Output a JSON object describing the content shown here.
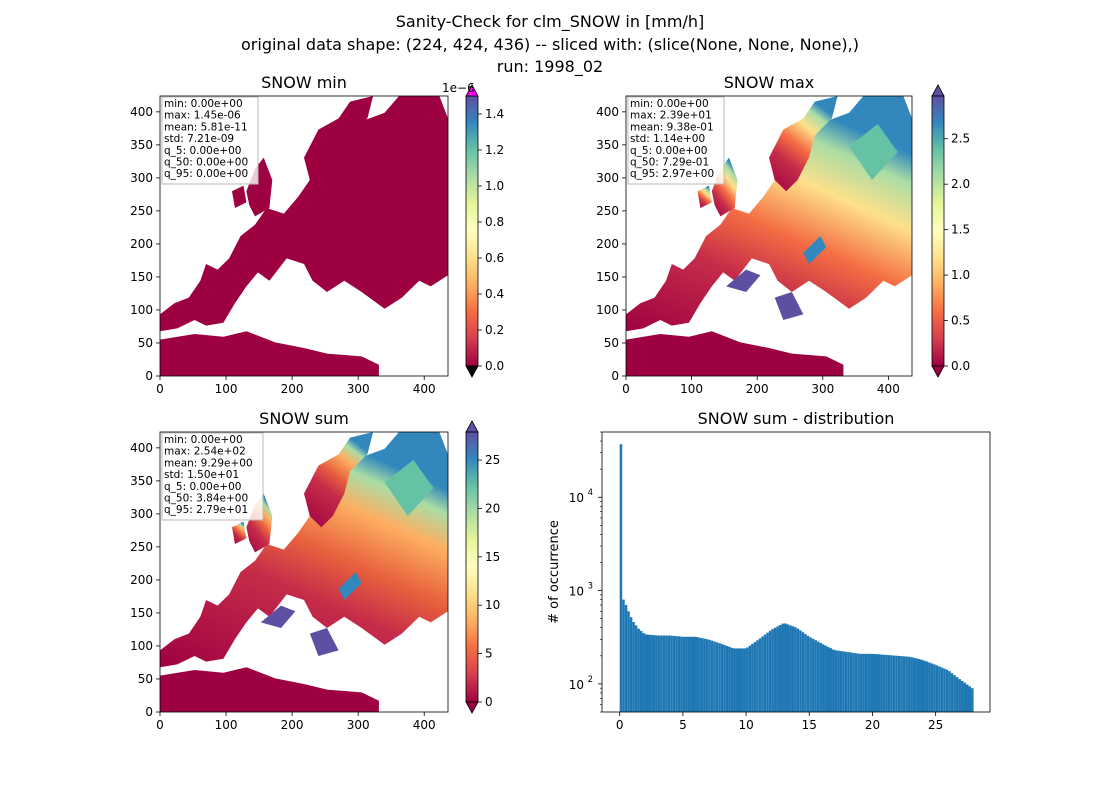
{
  "figure": {
    "title_lines": [
      "Sanity-Check for clm_SNOW in [mm/h]",
      "original data shape: (224, 424, 436) -- sliced with: (slice(None, None, None),)",
      "run: 1998_02"
    ]
  },
  "chart_data": [
    {
      "type": "heatmap",
      "title": "SNOW min",
      "xlim": [
        0,
        436
      ],
      "ylim": [
        0,
        424
      ],
      "xticks": [
        0,
        100,
        200,
        300,
        400
      ],
      "yticks": [
        0,
        50,
        100,
        150,
        200,
        250,
        300,
        350,
        400
      ],
      "colormap": "Spectral",
      "colorbar": {
        "range": [
          0,
          1.5e-06
        ],
        "ticks": [
          0.0,
          0.2,
          0.4,
          0.6,
          0.8,
          1.0,
          1.2,
          1.4
        ],
        "tick_labels": [
          "0.0",
          "0.2",
          "0.4",
          "0.6",
          "0.8",
          "1.0",
          "1.2",
          "1.4"
        ],
        "offset_label": "1e−6",
        "extend": "both",
        "over_color": "#ff00ff",
        "under_color": "#000000"
      },
      "stats": [
        "min: 0.00e+00",
        "max: 1.45e-06",
        "mean: 5.81e-11",
        "std: 7.21e-09",
        "q_5: 0.00e+00",
        "q_50: 0.00e+00",
        "q_95: 0.00e+00"
      ]
    },
    {
      "type": "heatmap",
      "title": "SNOW max",
      "xlim": [
        0,
        436
      ],
      "ylim": [
        0,
        424
      ],
      "xticks": [
        0,
        100,
        200,
        300,
        400
      ],
      "yticks": [
        0,
        50,
        100,
        150,
        200,
        250,
        300,
        350,
        400
      ],
      "colormap": "Spectral",
      "colorbar": {
        "range": [
          0,
          2.97
        ],
        "ticks": [
          0.0,
          0.5,
          1.0,
          1.5,
          2.0,
          2.5
        ],
        "tick_labels": [
          "0.0",
          "0.5",
          "1.0",
          "1.5",
          "2.0",
          "2.5"
        ],
        "extend": "both"
      },
      "stats": [
        "min: 0.00e+00",
        "max: 2.39e+01",
        "mean: 9.38e-01",
        "std: 1.14e+00",
        "q_5: 0.00e+00",
        "q_50: 7.29e-01",
        "q_95: 2.97e+00"
      ]
    },
    {
      "type": "heatmap",
      "title": "SNOW sum",
      "xlim": [
        0,
        436
      ],
      "ylim": [
        0,
        424
      ],
      "xticks": [
        0,
        100,
        200,
        300,
        400
      ],
      "yticks": [
        0,
        50,
        100,
        150,
        200,
        250,
        300,
        350,
        400
      ],
      "colormap": "Spectral",
      "colorbar": {
        "range": [
          0,
          27.9
        ],
        "ticks": [
          0,
          5,
          10,
          15,
          20,
          25
        ],
        "tick_labels": [
          "0",
          "5",
          "10",
          "15",
          "20",
          "25"
        ],
        "extend": "both"
      },
      "stats": [
        "min: 0.00e+00",
        "max: 2.54e+02",
        "mean: 9.29e+00",
        "std: 1.50e+01",
        "q_5: 0.00e+00",
        "q_50: 3.84e+00",
        "q_95: 2.79e+01"
      ]
    },
    {
      "type": "bar",
      "title": "SNOW sum - distribution",
      "ylabel": "# of occurrence",
      "xlabel": "",
      "yscale": "log",
      "xlim": [
        -1.4,
        29.3
      ],
      "ylim": [
        50,
        50000
      ],
      "xticks": [
        0,
        5,
        10,
        15,
        20,
        25
      ],
      "yticks": [
        100,
        1000,
        10000
      ],
      "ytick_labels": [
        "10",
        "10",
        "10"
      ],
      "ytick_exponents": [
        "2",
        "3",
        "4"
      ],
      "bar_color": "#1f77b4",
      "bin_width": 0.2,
      "x": [
        0,
        0.1,
        0.3,
        0.5,
        0.7,
        1.0,
        1.5,
        2,
        3,
        4,
        5,
        6,
        7,
        8,
        9,
        10,
        11,
        12,
        13,
        14,
        15,
        16,
        17,
        18,
        19,
        20,
        21,
        22,
        23,
        24,
        25,
        26,
        27,
        27.9
      ],
      "values": [
        37000,
        950,
        800,
        700,
        600,
        480,
        390,
        340,
        330,
        330,
        320,
        320,
        300,
        270,
        240,
        240,
        300,
        380,
        450,
        400,
        320,
        270,
        230,
        220,
        210,
        210,
        205,
        200,
        195,
        180,
        160,
        140,
        110,
        90
      ]
    }
  ]
}
